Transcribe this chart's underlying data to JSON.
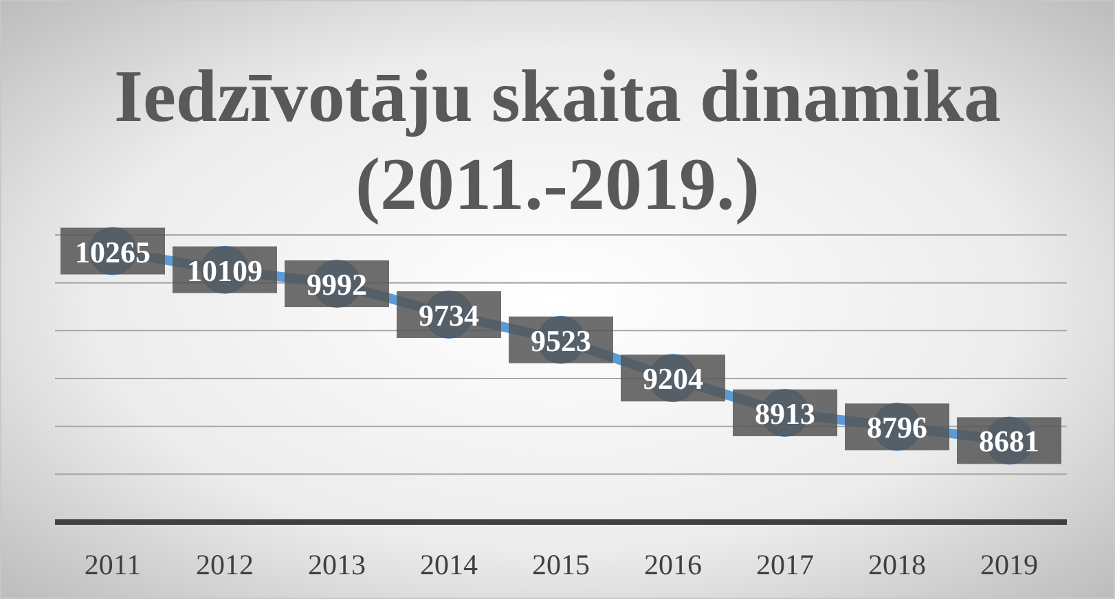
{
  "chart_data": {
    "type": "line",
    "title": "Iedzīvotāju skaita dinamika (2011.-2019.)",
    "categories": [
      "2011",
      "2012",
      "2013",
      "2014",
      "2015",
      "2016",
      "2017",
      "2018",
      "2019"
    ],
    "series": [
      {
        "color": "#5b9bd5",
        "values": [
          10265,
          10109,
          9992,
          9734,
          9523,
          9204,
          8913,
          8796,
          8681
        ]
      }
    ],
    "ylim": [
      8000,
      10400
    ],
    "yticks": [
      {
        "value": 8000,
        "label": null
      },
      {
        "value": 8400,
        "label": null
      },
      {
        "value": 8800,
        "label": null
      },
      {
        "value": 9200,
        "label": null
      },
      {
        "value": 9600,
        "label": null
      },
      {
        "value": 10000,
        "label": null
      },
      {
        "value": 10400,
        "label": null
      }
    ],
    "tick_labels": "x",
    "grid": "y",
    "marker": "circle",
    "data_labels": true
  }
}
